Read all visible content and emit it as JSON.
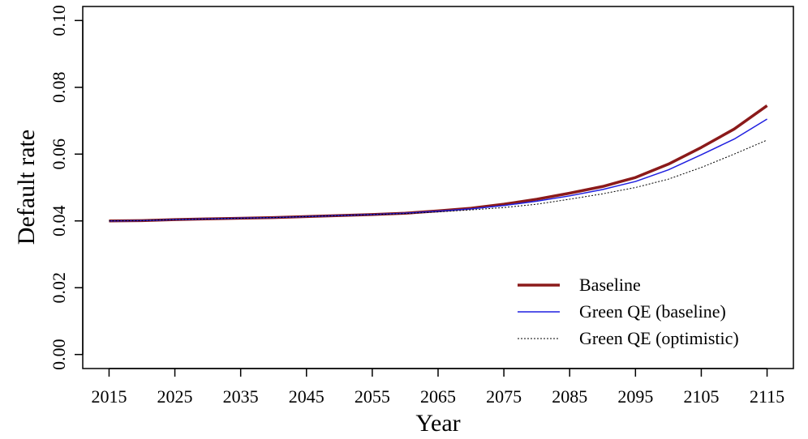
{
  "chart_data": {
    "type": "line",
    "xlabel": "Year",
    "ylabel": "Default rate",
    "x": [
      2015,
      2020,
      2025,
      2030,
      2035,
      2040,
      2045,
      2050,
      2055,
      2060,
      2065,
      2070,
      2075,
      2080,
      2085,
      2090,
      2095,
      2100,
      2105,
      2110,
      2115
    ],
    "series": [
      {
        "name": "Baseline",
        "color": "#8b1a1a",
        "values": [
          0.04,
          0.0401,
          0.0404,
          0.0406,
          0.0408,
          0.041,
          0.0413,
          0.0416,
          0.0419,
          0.0423,
          0.043,
          0.0438,
          0.045,
          0.0465,
          0.0483,
          0.0503,
          0.053,
          0.057,
          0.062,
          0.0675,
          0.0745
        ]
      },
      {
        "name": "Green QE (baseline)",
        "color": "#1f1fe0",
        "values": [
          0.04,
          0.0401,
          0.0404,
          0.0406,
          0.0408,
          0.041,
          0.0413,
          0.0416,
          0.0419,
          0.0423,
          0.0429,
          0.0436,
          0.0446,
          0.0459,
          0.0475,
          0.0494,
          0.0518,
          0.0553,
          0.0598,
          0.0645,
          0.0705
        ]
      },
      {
        "name": "Green QE (optimistic)",
        "color": "#000000",
        "dash": "2,2",
        "values": [
          0.04,
          0.0401,
          0.0404,
          0.0406,
          0.0408,
          0.041,
          0.0413,
          0.0416,
          0.0419,
          0.0422,
          0.0427,
          0.0433,
          0.044,
          0.045,
          0.0465,
          0.0481,
          0.05,
          0.0525,
          0.056,
          0.06,
          0.0642
        ]
      }
    ],
    "xlim": [
      2011,
      2119
    ],
    "xticks": [
      2015,
      2025,
      2035,
      2045,
      2055,
      2065,
      2075,
      2085,
      2095,
      2105,
      2115
    ],
    "ylim": [
      -0.0042,
      0.1042
    ],
    "yticks": [
      {
        "value": 0,
        "label": "0.00"
      },
      {
        "value": 0.02,
        "label": "0.02"
      },
      {
        "value": 0.04,
        "label": "0.04"
      },
      {
        "value": 0.06,
        "label": "0.06"
      },
      {
        "value": 0.08,
        "label": "0.08"
      },
      {
        "value": 0.1,
        "label": "0.10"
      }
    ],
    "grid": false,
    "legend": "bottom-right"
  }
}
